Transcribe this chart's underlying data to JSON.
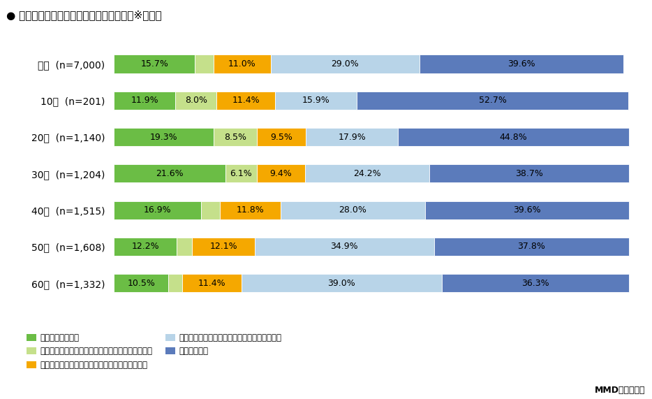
{
  "title": "● ポイント投資の認知～利用状況（単数）※年代別",
  "categories": [
    "全体  (n=7,000)",
    "10代  (n=201)",
    "20代  (n=1,140)",
    "30代  (n=1,204)",
    "40代  (n=1,515)",
    "50代  (n=1,608)",
    "60代  (n=1,332)"
  ],
  "segments": [
    {
      "label": "現在利用している",
      "color": "#6BBD45",
      "values": [
        15.7,
        11.9,
        19.3,
        21.6,
        16.9,
        12.2,
        10.5
      ]
    },
    {
      "label": "現在は利用していないが過去に利用したことがある",
      "color": "#C5E08B",
      "values": [
        3.7,
        8.0,
        8.5,
        6.1,
        3.7,
        3.0,
        2.8
      ]
    },
    {
      "label": "どのようなサービスなのか、内容まで知っている",
      "color": "#F5A800",
      "values": [
        11.0,
        11.4,
        9.5,
        9.4,
        11.8,
        12.1,
        11.4
      ]
    },
    {
      "label": "聞いたことはあるが、サービス内容は知らない",
      "color": "#B8D4E8",
      "values": [
        29.0,
        15.9,
        17.9,
        24.2,
        28.0,
        34.9,
        39.0
      ]
    },
    {
      "label": "全く知らない",
      "color": "#5B7BBB",
      "values": [
        39.6,
        52.7,
        44.8,
        38.7,
        39.6,
        37.8,
        36.3
      ]
    }
  ],
  "segment_labels": [
    [
      "15.7%",
      "11.9%",
      "19.3%",
      "21.6%",
      "16.9%",
      "12.2%",
      "10.5%"
    ],
    [
      "",
      "8.0%",
      "8.5%",
      "6.1%",
      "",
      "",
      ""
    ],
    [
      "11.0%",
      "11.4%",
      "9.5%",
      "9.4%",
      "11.8%",
      "12.1%",
      "11.4%"
    ],
    [
      "29.0%",
      "15.9%",
      "17.9%",
      "24.2%",
      "28.0%",
      "34.9%",
      "39.0%"
    ],
    [
      "39.6%",
      "52.7%",
      "44.8%",
      "38.7%",
      "39.6%",
      "37.8%",
      "36.3%"
    ]
  ],
  "background_color": "#FFFFFF",
  "title_fontsize": 11,
  "bar_label_fontsize": 9,
  "ytick_fontsize": 10,
  "legend_fontsize": 8.5,
  "footer": "MMD研究所調べ",
  "footer_fontsize": 9
}
